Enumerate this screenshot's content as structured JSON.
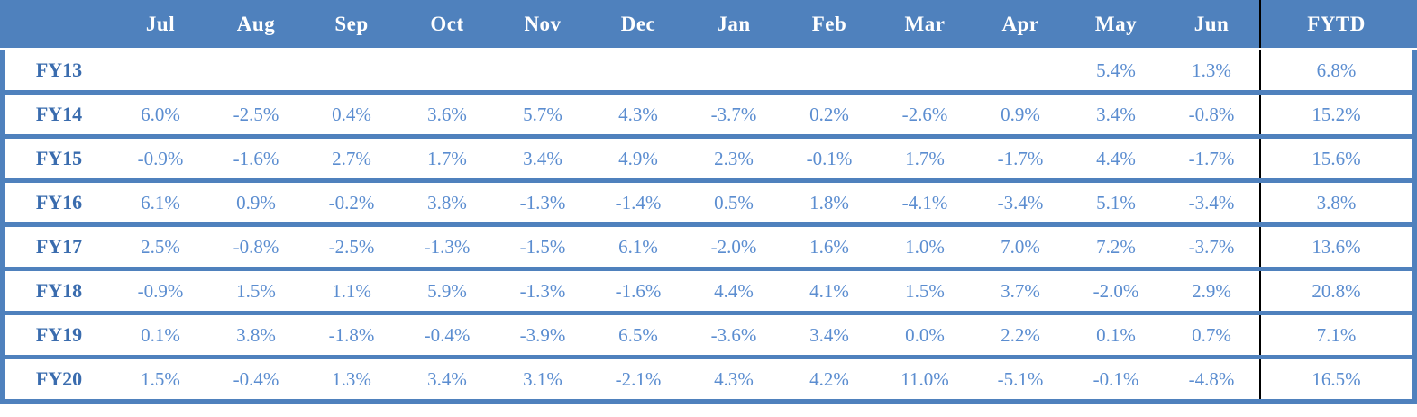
{
  "colors": {
    "header_background": "#4f81bd",
    "table_border_blue": "#4f81bd",
    "row_label_text": "#3a6cae",
    "value_text": "#5b8dd0",
    "header_text": "#ffffff",
    "fytd_divider": "#000000"
  },
  "chart_data": {
    "type": "table",
    "columns": [
      "",
      "Jul",
      "Aug",
      "Sep",
      "Oct",
      "Nov",
      "Dec",
      "Jan",
      "Feb",
      "Mar",
      "Apr",
      "May",
      "Jun",
      "FYTD"
    ],
    "rows": [
      {
        "label": "FY13",
        "values": [
          "",
          "",
          "",
          "",
          "",
          "",
          "",
          "",
          "",
          "",
          "5.4%",
          "1.3%"
        ],
        "fytd": "6.8%"
      },
      {
        "label": "FY14",
        "values": [
          "6.0%",
          "-2.5%",
          "0.4%",
          "3.6%",
          "5.7%",
          "4.3%",
          "-3.7%",
          "0.2%",
          "-2.6%",
          "0.9%",
          "3.4%",
          "-0.8%"
        ],
        "fytd": "15.2%"
      },
      {
        "label": "FY15",
        "values": [
          "-0.9%",
          "-1.6%",
          "2.7%",
          "1.7%",
          "3.4%",
          "4.9%",
          "2.3%",
          "-0.1%",
          "1.7%",
          "-1.7%",
          "4.4%",
          "-1.7%"
        ],
        "fytd": "15.6%"
      },
      {
        "label": "FY16",
        "values": [
          "6.1%",
          "0.9%",
          "-0.2%",
          "3.8%",
          "-1.3%",
          "-1.4%",
          "0.5%",
          "1.8%",
          "-4.1%",
          "-3.4%",
          "5.1%",
          "-3.4%"
        ],
        "fytd": "3.8%"
      },
      {
        "label": "FY17",
        "values": [
          "2.5%",
          "-0.8%",
          "-2.5%",
          "-1.3%",
          "-1.5%",
          "6.1%",
          "-2.0%",
          "1.6%",
          "1.0%",
          "7.0%",
          "7.2%",
          "-3.7%"
        ],
        "fytd": "13.6%"
      },
      {
        "label": "FY18",
        "values": [
          "-0.9%",
          "1.5%",
          "1.1%",
          "5.9%",
          "-1.3%",
          "-1.6%",
          "4.4%",
          "4.1%",
          "1.5%",
          "3.7%",
          "-2.0%",
          "2.9%"
        ],
        "fytd": "20.8%"
      },
      {
        "label": "FY19",
        "values": [
          "0.1%",
          "3.8%",
          "-1.8%",
          "-0.4%",
          "-3.9%",
          "6.5%",
          "-3.6%",
          "3.4%",
          "0.0%",
          "2.2%",
          "0.1%",
          "0.7%"
        ],
        "fytd": "7.1%"
      },
      {
        "label": "FY20",
        "values": [
          "1.5%",
          "-0.4%",
          "1.3%",
          "3.4%",
          "3.1%",
          "-2.1%",
          "4.3%",
          "4.2%",
          "11.0%",
          "-5.1%",
          "-0.1%",
          "-4.8%"
        ],
        "fytd": "16.5%"
      }
    ]
  }
}
